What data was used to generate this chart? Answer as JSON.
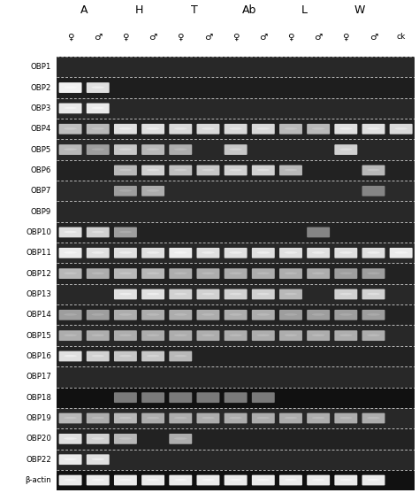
{
  "col_groups": [
    "A",
    "H",
    "T",
    "Ab",
    "L",
    "W"
  ],
  "ck_label": "ck",
  "row_labels": [
    "OBP1",
    "OBP2",
    "OBP3",
    "OBP4",
    "OBP5",
    "OBP6",
    "OBP7",
    "OBP9",
    "OBP10",
    "OBP11",
    "OBP12",
    "OBP13",
    "OBP14",
    "OBP15",
    "OBP16",
    "OBP17",
    "OBP18",
    "OBP19",
    "OBP20",
    "OBP22",
    "β-actin"
  ],
  "band_intensities": {
    "OBP1": [
      0,
      0,
      0,
      0,
      0,
      0,
      0,
      0,
      0,
      0,
      0,
      0,
      0
    ],
    "OBP2": [
      0.95,
      0.88,
      0,
      0,
      0,
      0,
      0,
      0,
      0,
      0,
      0,
      0,
      0
    ],
    "OBP3": [
      0.92,
      0.92,
      0,
      0,
      0,
      0,
      0,
      0,
      0,
      0,
      0,
      0,
      0
    ],
    "OBP4": [
      0.75,
      0.72,
      0.88,
      0.88,
      0.85,
      0.85,
      0.85,
      0.85,
      0.72,
      0.72,
      0.88,
      0.88,
      0.85
    ],
    "OBP5": [
      0.72,
      0.62,
      0.78,
      0.72,
      0.68,
      0,
      0.78,
      0,
      0,
      0,
      0.82,
      0,
      0
    ],
    "OBP6": [
      0,
      0,
      0.72,
      0.82,
      0.75,
      0.78,
      0.82,
      0.82,
      0.72,
      0,
      0,
      0.72,
      0
    ],
    "OBP7": [
      0,
      0,
      0.62,
      0.68,
      0,
      0,
      0,
      0,
      0,
      0,
      0,
      0.52,
      0
    ],
    "OBP9": [
      0,
      0,
      0,
      0,
      0,
      0,
      0,
      0,
      0,
      0,
      0,
      0,
      0
    ],
    "OBP10": [
      0.88,
      0.82,
      0.62,
      0,
      0,
      0,
      0,
      0,
      0,
      0.52,
      0,
      0,
      0
    ],
    "OBP11": [
      0.92,
      0.88,
      0.88,
      0.88,
      0.92,
      0.88,
      0.88,
      0.88,
      0.88,
      0.88,
      0.88,
      0.88,
      0.92
    ],
    "OBP12": [
      0.72,
      0.68,
      0.72,
      0.72,
      0.68,
      0.68,
      0.68,
      0.68,
      0.68,
      0.68,
      0.62,
      0.62,
      0
    ],
    "OBP13": [
      0,
      0,
      0.88,
      0.88,
      0.82,
      0.82,
      0.82,
      0.82,
      0.72,
      0,
      0.82,
      0.82,
      0
    ],
    "OBP14": [
      0.62,
      0.62,
      0.68,
      0.68,
      0.68,
      0.68,
      0.68,
      0.68,
      0.62,
      0.62,
      0.62,
      0.62,
      0
    ],
    "OBP15": [
      0.68,
      0.68,
      0.68,
      0.68,
      0.68,
      0.68,
      0.68,
      0.68,
      0.68,
      0.68,
      0.68,
      0.68,
      0
    ],
    "OBP16": [
      0.88,
      0.82,
      0.78,
      0.78,
      0.72,
      0,
      0,
      0,
      0,
      0,
      0,
      0,
      0
    ],
    "OBP17": [
      0,
      0,
      0,
      0,
      0,
      0,
      0,
      0,
      0,
      0,
      0,
      0,
      0
    ],
    "OBP18": [
      0,
      0,
      0.48,
      0.48,
      0.48,
      0.48,
      0.48,
      0.48,
      0,
      0,
      0,
      0,
      0
    ],
    "OBP19": [
      0.72,
      0.68,
      0.72,
      0.68,
      0.68,
      0.68,
      0.68,
      0.68,
      0.68,
      0.68,
      0.68,
      0.68,
      0
    ],
    "OBP20": [
      0.88,
      0.82,
      0.72,
      0,
      0.68,
      0,
      0,
      0,
      0,
      0,
      0,
      0,
      0
    ],
    "OBP22": [
      0.92,
      0.88,
      0,
      0,
      0,
      0,
      0,
      0,
      0,
      0,
      0,
      0,
      0
    ],
    "β-actin": [
      0.92,
      0.92,
      0.92,
      0.92,
      0.92,
      0.92,
      0.92,
      0.92,
      0.92,
      0.92,
      0.92,
      0.92,
      0
    ]
  },
  "row_bg_colors": {
    "OBP1": "#282828",
    "OBP2": "#1e1e1e",
    "OBP3": "#282828",
    "OBP4": "#222222",
    "OBP5": "#282828",
    "OBP6": "#222222",
    "OBP7": "#2a2a2a",
    "OBP9": "#282828",
    "OBP10": "#222222",
    "OBP11": "#282828",
    "OBP12": "#222222",
    "OBP13": "#282828",
    "OBP14": "#222222",
    "OBP15": "#282828",
    "OBP16": "#222222",
    "OBP17": "#282828",
    "OBP18": "#111111",
    "OBP19": "#282828",
    "OBP20": "#222222",
    "OBP22": "#282828",
    "β-actin": "#111111"
  },
  "dashed_line_color": "#ffffff",
  "row_label_font_size": 6.2,
  "col_label_font_size": 7.5,
  "group_label_font_size": 9
}
